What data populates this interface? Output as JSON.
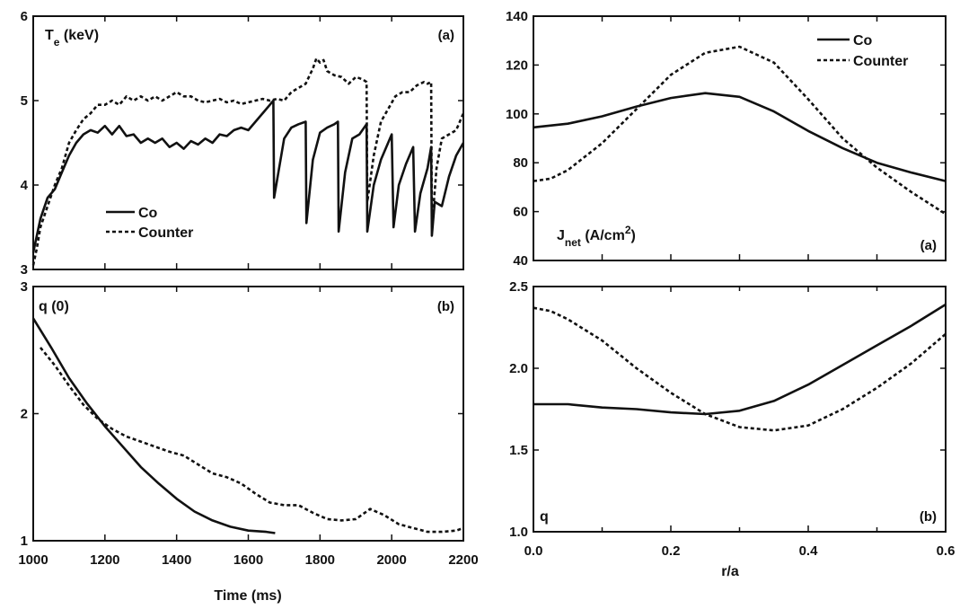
{
  "chart_data": [
    {
      "id": "te",
      "type": "line",
      "panel_label": "(a)",
      "ylabel_main": "T",
      "ylabel_sub": "e",
      "ylabel_rest": " (keV)",
      "xlim": [
        1000,
        2200
      ],
      "ylim": [
        3,
        6
      ],
      "yticks": [
        "3",
        "4",
        "5",
        "6"
      ],
      "ytick_values": [
        3,
        4,
        5,
        6
      ],
      "xtick_values": [
        1000,
        1200,
        1400,
        1600,
        1800,
        2000,
        2200
      ],
      "legend_placement": "lower-left",
      "series": [
        {
          "name": "Co",
          "style": "solid",
          "x": [
            1000,
            1010,
            1020,
            1040,
            1060,
            1080,
            1100,
            1120,
            1140,
            1160,
            1180,
            1200,
            1220,
            1240,
            1260,
            1280,
            1300,
            1320,
            1340,
            1360,
            1380,
            1400,
            1420,
            1440,
            1460,
            1480,
            1500,
            1520,
            1540,
            1560,
            1580,
            1600,
            1620,
            1640,
            1660,
            1670,
            1672,
            1680,
            1700,
            1720,
            1740,
            1760,
            1762,
            1780,
            1800,
            1820,
            1840,
            1850,
            1852,
            1870,
            1890,
            1910,
            1930,
            1932,
            1950,
            1970,
            1990,
            2000,
            2005,
            2020,
            2040,
            2060,
            2065,
            2080,
            2100,
            2110,
            2112,
            2120,
            2140,
            2160,
            2180,
            2200
          ],
          "y": [
            3.2,
            3.4,
            3.6,
            3.85,
            3.95,
            4.15,
            4.35,
            4.5,
            4.6,
            4.65,
            4.62,
            4.7,
            4.6,
            4.7,
            4.58,
            4.6,
            4.5,
            4.55,
            4.5,
            4.55,
            4.45,
            4.5,
            4.43,
            4.52,
            4.48,
            4.55,
            4.5,
            4.6,
            4.58,
            4.65,
            4.68,
            4.65,
            4.75,
            4.85,
            4.95,
            5.0,
            3.85,
            4.05,
            4.55,
            4.68,
            4.72,
            4.75,
            3.55,
            4.3,
            4.62,
            4.68,
            4.72,
            4.75,
            3.45,
            4.15,
            4.55,
            4.6,
            4.72,
            3.45,
            4.0,
            4.3,
            4.5,
            4.6,
            3.5,
            4.0,
            4.25,
            4.45,
            3.45,
            3.9,
            4.2,
            4.45,
            3.4,
            3.8,
            3.75,
            4.1,
            4.35,
            4.5
          ]
        },
        {
          "name": "Counter",
          "style": "dashed",
          "x": [
            1000,
            1010,
            1020,
            1040,
            1060,
            1080,
            1100,
            1120,
            1140,
            1160,
            1180,
            1200,
            1220,
            1240,
            1260,
            1280,
            1300,
            1320,
            1340,
            1360,
            1380,
            1400,
            1420,
            1440,
            1460,
            1480,
            1500,
            1520,
            1540,
            1560,
            1580,
            1600,
            1620,
            1640,
            1660,
            1680,
            1700,
            1720,
            1740,
            1760,
            1780,
            1790,
            1800,
            1810,
            1820,
            1840,
            1860,
            1880,
            1900,
            1920,
            1930,
            1932,
            1950,
            1970,
            1990,
            2010,
            2030,
            2050,
            2070,
            2090,
            2100,
            2110,
            2112,
            2125,
            2140,
            2160,
            2180,
            2200
          ],
          "y": [
            3.05,
            3.25,
            3.5,
            3.75,
            4.0,
            4.2,
            4.5,
            4.65,
            4.78,
            4.85,
            4.95,
            4.95,
            5.0,
            4.95,
            5.05,
            5.0,
            5.05,
            5.0,
            5.05,
            5.0,
            5.05,
            5.1,
            5.05,
            5.05,
            5.0,
            4.98,
            5.0,
            5.02,
            4.98,
            5.0,
            4.96,
            4.98,
            5.0,
            5.02,
            5.0,
            5.02,
            5.0,
            5.1,
            5.15,
            5.2,
            5.38,
            5.5,
            5.45,
            5.48,
            5.35,
            5.3,
            5.28,
            5.2,
            5.28,
            5.25,
            5.22,
            3.8,
            4.35,
            4.75,
            4.9,
            5.05,
            5.1,
            5.1,
            5.18,
            5.22,
            5.2,
            5.22,
            3.5,
            4.2,
            4.55,
            4.6,
            4.65,
            4.85
          ]
        }
      ]
    },
    {
      "id": "q0",
      "type": "line",
      "panel_label": "(b)",
      "ylabel": "q (0)",
      "xlabel": "Time (ms)",
      "xlim": [
        1000,
        2200
      ],
      "ylim": [
        1,
        3
      ],
      "xticks": [
        "1000",
        "1200",
        "1400",
        "1600",
        "1800",
        "2000",
        "2200"
      ],
      "xtick_values": [
        1000,
        1200,
        1400,
        1600,
        1800,
        2000,
        2200
      ],
      "yticks": [
        "1",
        "2",
        "3"
      ],
      "ytick_values": [
        1,
        2,
        3
      ],
      "series": [
        {
          "name": "Co",
          "style": "solid",
          "x": [
            1000,
            1050,
            1100,
            1150,
            1200,
            1250,
            1300,
            1350,
            1400,
            1450,
            1500,
            1550,
            1600,
            1650,
            1675
          ],
          "y": [
            2.75,
            2.52,
            2.28,
            2.08,
            1.9,
            1.74,
            1.58,
            1.45,
            1.33,
            1.23,
            1.16,
            1.11,
            1.08,
            1.07,
            1.06
          ]
        },
        {
          "name": "Counter",
          "style": "dashed",
          "x": [
            1020,
            1060,
            1100,
            1140,
            1180,
            1220,
            1260,
            1300,
            1340,
            1380,
            1420,
            1460,
            1500,
            1540,
            1580,
            1620,
            1660,
            1700,
            1740,
            1780,
            1820,
            1860,
            1900,
            1940,
            1980,
            2020,
            2060,
            2100,
            2140,
            2180,
            2200
          ],
          "y": [
            2.52,
            2.38,
            2.22,
            2.07,
            1.96,
            1.88,
            1.82,
            1.78,
            1.74,
            1.7,
            1.67,
            1.6,
            1.53,
            1.5,
            1.45,
            1.37,
            1.3,
            1.28,
            1.28,
            1.22,
            1.17,
            1.16,
            1.17,
            1.25,
            1.2,
            1.13,
            1.1,
            1.07,
            1.07,
            1.08,
            1.1
          ]
        }
      ]
    },
    {
      "id": "jnet",
      "type": "line",
      "panel_label": "(a)",
      "ylabel_main": "J",
      "ylabel_sub": "net",
      "ylabel_rest": " (A/cm",
      "ylabel_sup": "2",
      "ylabel_end": ")",
      "xlim": [
        0,
        0.6
      ],
      "ylim": [
        40,
        140
      ],
      "yticks": [
        "40",
        "60",
        "80",
        "100",
        "120",
        "140"
      ],
      "ytick_values": [
        40,
        60,
        80,
        100,
        120,
        140
      ],
      "xtick_values": [
        0,
        0.1,
        0.2,
        0.3,
        0.4,
        0.5,
        0.6
      ],
      "legend_placement": "top-right",
      "series": [
        {
          "name": "Co",
          "style": "solid",
          "x": [
            0,
            0.05,
            0.1,
            0.15,
            0.2,
            0.25,
            0.3,
            0.35,
            0.4,
            0.45,
            0.5,
            0.55,
            0.6
          ],
          "y": [
            94.5,
            96,
            99,
            103,
            106.5,
            108.5,
            107,
            101,
            93,
            86,
            80,
            76,
            72.5
          ]
        },
        {
          "name": "Counter",
          "style": "dashed",
          "x": [
            0,
            0.025,
            0.05,
            0.1,
            0.15,
            0.2,
            0.25,
            0.3,
            0.35,
            0.4,
            0.45,
            0.5,
            0.55,
            0.6
          ],
          "y": [
            72.5,
            73.5,
            77,
            88,
            102,
            116,
            125,
            127.5,
            121,
            106,
            90,
            78,
            68,
            59
          ]
        }
      ]
    },
    {
      "id": "q",
      "type": "line",
      "panel_label": "(b)",
      "ylabel": "q",
      "xlabel": "r/a",
      "xlim": [
        0,
        0.6
      ],
      "ylim": [
        1.0,
        2.5
      ],
      "xticks": [
        "0.0",
        "0.2",
        "0.4",
        "0.6"
      ],
      "xtick_values": [
        0,
        0.2,
        0.4,
        0.6
      ],
      "xtick_minor_values": [
        0.1,
        0.3,
        0.5
      ],
      "yticks": [
        "1.0",
        "1.5",
        "2.0",
        "2.5"
      ],
      "ytick_values": [
        1.0,
        1.5,
        2.0,
        2.5
      ],
      "series": [
        {
          "name": "Co",
          "style": "solid",
          "x": [
            0,
            0.05,
            0.1,
            0.15,
            0.2,
            0.25,
            0.3,
            0.35,
            0.4,
            0.45,
            0.5,
            0.55,
            0.6
          ],
          "y": [
            1.78,
            1.78,
            1.76,
            1.75,
            1.73,
            1.72,
            1.74,
            1.8,
            1.9,
            2.02,
            2.14,
            2.26,
            2.39
          ]
        },
        {
          "name": "Counter",
          "style": "dashed",
          "x": [
            0,
            0.025,
            0.05,
            0.1,
            0.15,
            0.2,
            0.25,
            0.3,
            0.35,
            0.4,
            0.45,
            0.5,
            0.55,
            0.6
          ],
          "y": [
            2.37,
            2.35,
            2.3,
            2.17,
            2.0,
            1.85,
            1.72,
            1.64,
            1.62,
            1.65,
            1.75,
            1.88,
            2.03,
            2.21
          ]
        }
      ]
    }
  ]
}
